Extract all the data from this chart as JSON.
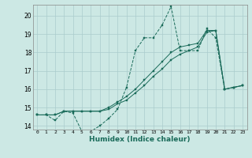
{
  "xlabel": "Humidex (Indice chaleur)",
  "ylabel": "",
  "bg_color": "#cce8e4",
  "grid_color": "#aacccc",
  "line_color": "#1a6b5a",
  "xlim": [
    -0.5,
    23.5
  ],
  "ylim": [
    13.8,
    20.6
  ],
  "xticks": [
    0,
    1,
    2,
    3,
    4,
    5,
    6,
    7,
    8,
    9,
    10,
    11,
    12,
    13,
    14,
    15,
    16,
    17,
    18,
    19,
    20,
    21,
    22,
    23
  ],
  "yticks": [
    14,
    15,
    16,
    17,
    18,
    19,
    20
  ],
  "series1": [
    14.6,
    14.6,
    14.3,
    14.8,
    14.7,
    13.7,
    13.7,
    14.0,
    14.4,
    14.9,
    16.1,
    18.1,
    18.8,
    18.8,
    19.5,
    20.5,
    18.1,
    18.1,
    18.1,
    19.3,
    18.8,
    16.0,
    16.1,
    16.2
  ],
  "series2": [
    14.6,
    14.6,
    14.6,
    14.8,
    14.8,
    14.8,
    14.8,
    14.8,
    14.9,
    15.2,
    15.4,
    15.8,
    16.2,
    16.7,
    17.1,
    17.6,
    17.9,
    18.1,
    18.3,
    19.1,
    19.2,
    16.0,
    16.1,
    16.2
  ],
  "series3": [
    14.6,
    14.6,
    14.6,
    14.8,
    14.8,
    14.8,
    14.8,
    14.8,
    15.0,
    15.3,
    15.6,
    16.0,
    16.5,
    17.0,
    17.5,
    18.0,
    18.3,
    18.4,
    18.5,
    19.2,
    19.2,
    16.0,
    16.1,
    16.2
  ]
}
